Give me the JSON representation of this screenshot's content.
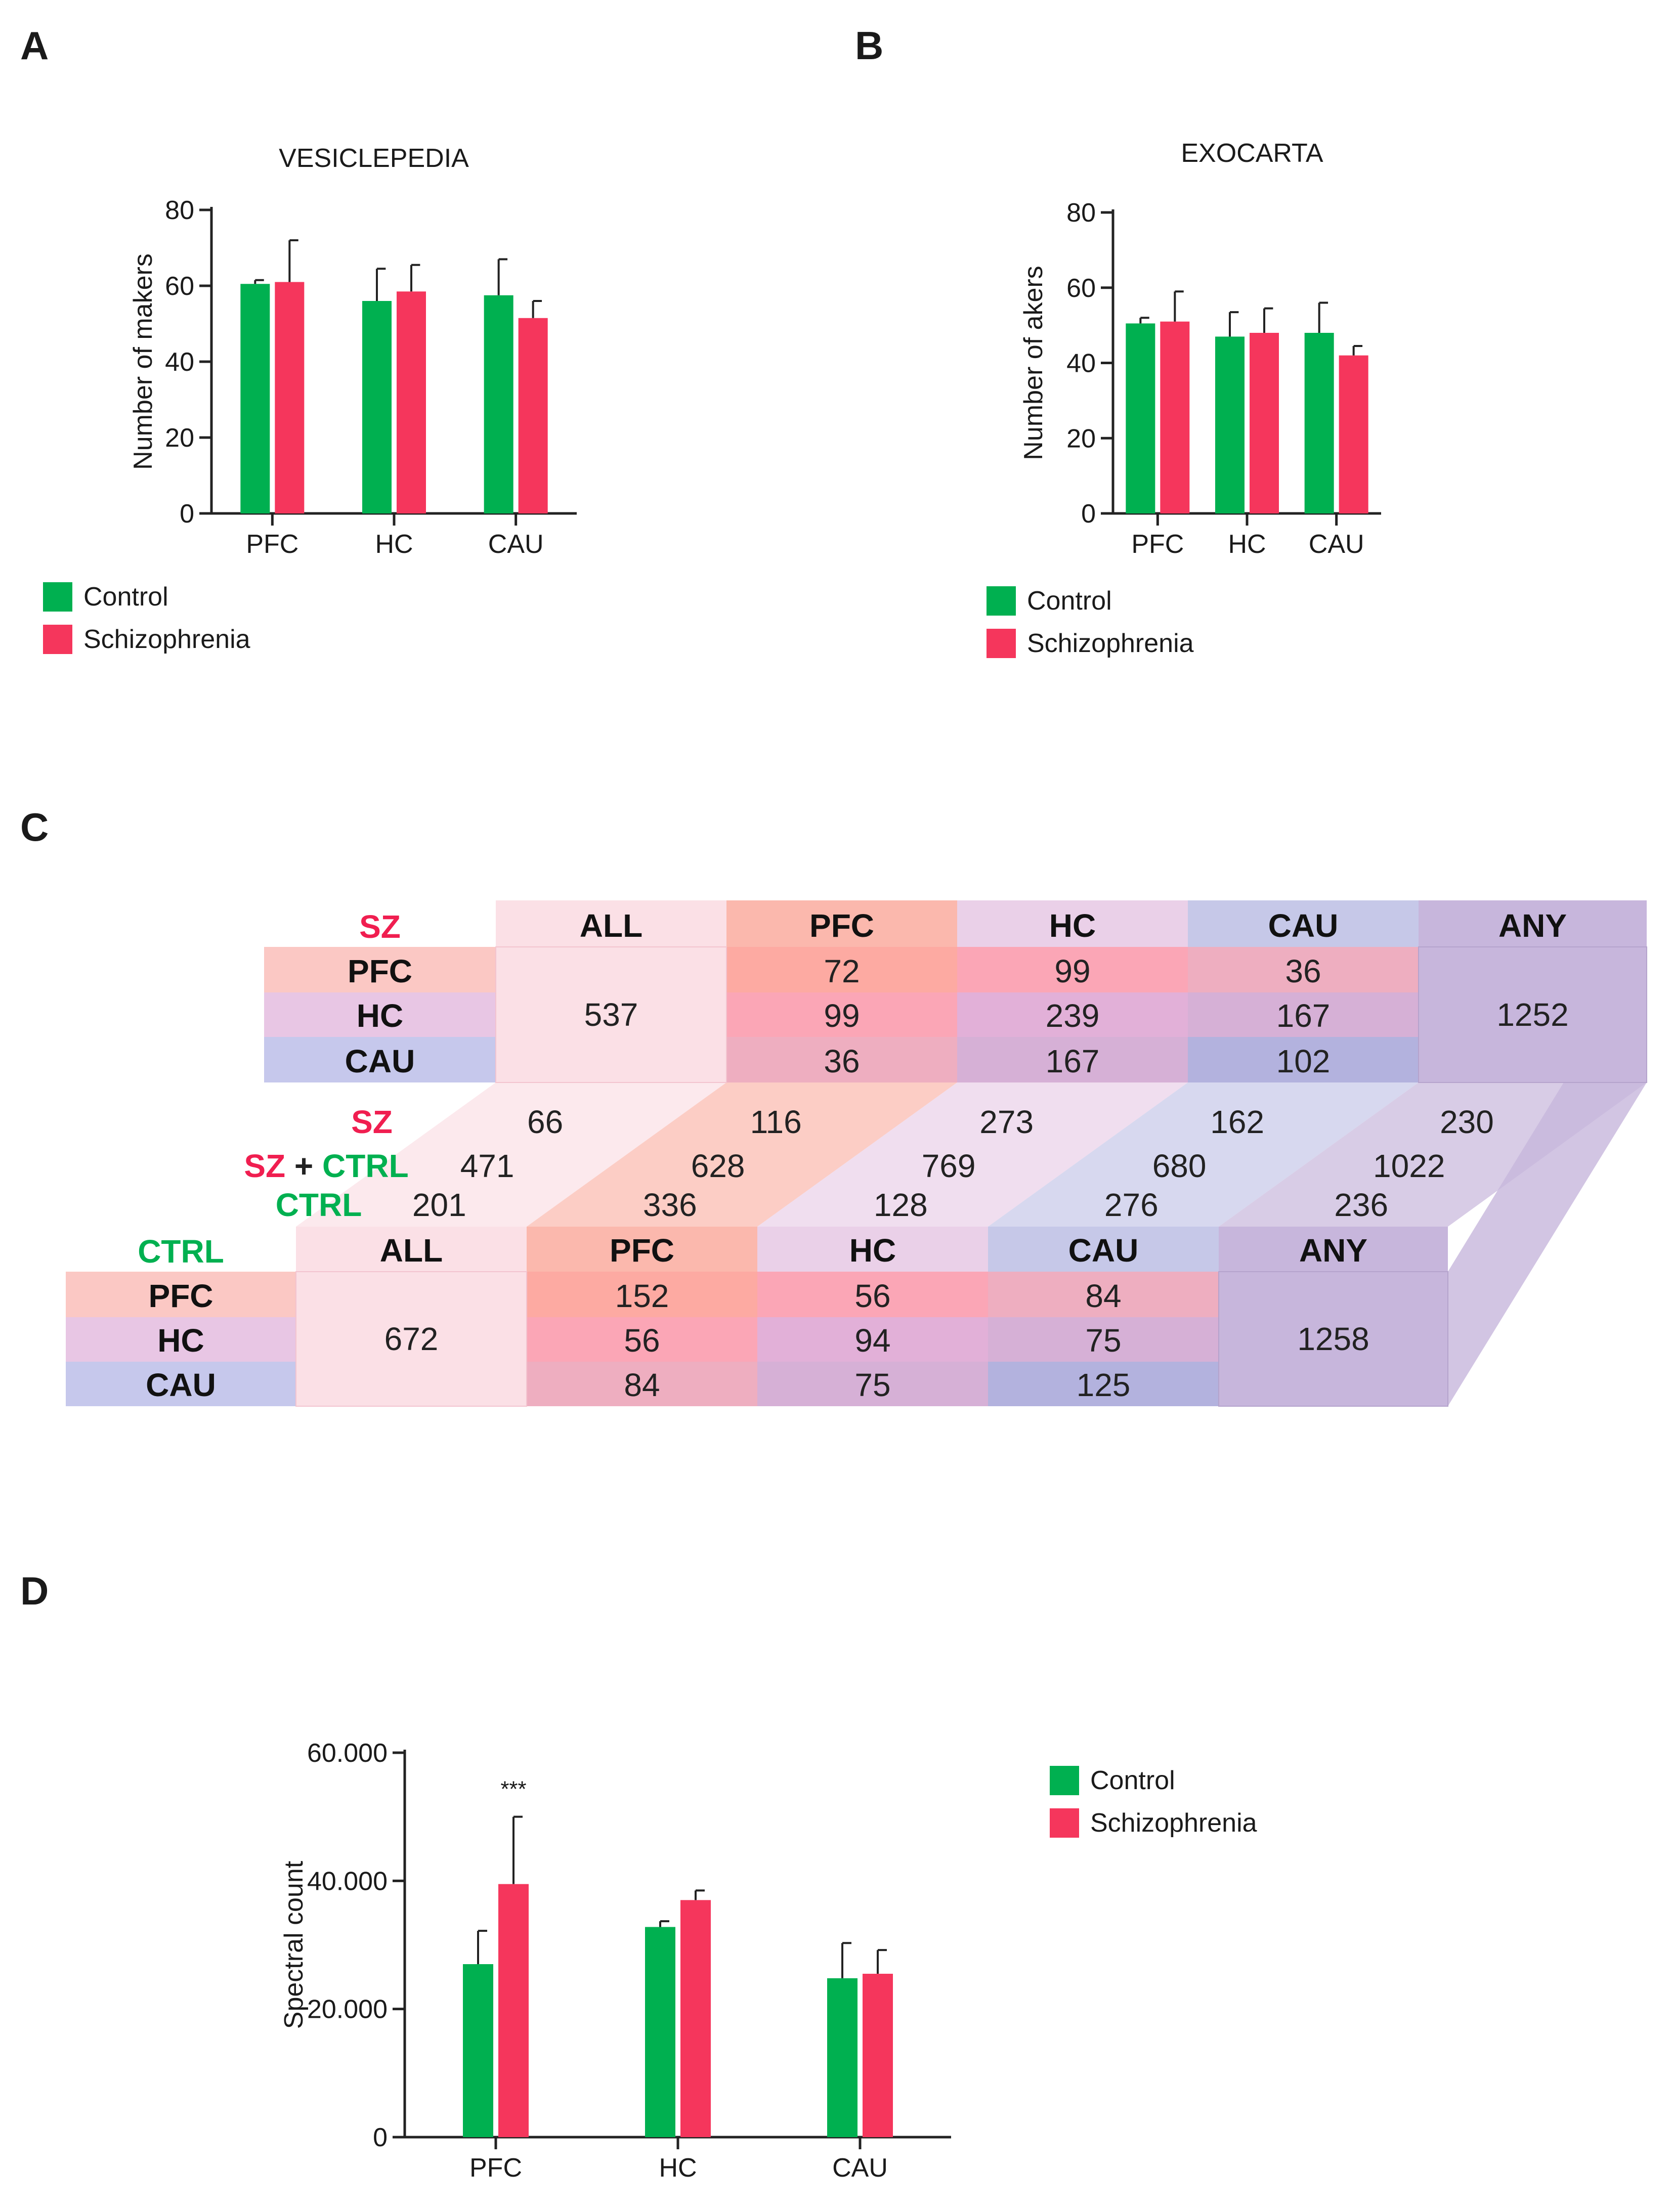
{
  "colors": {
    "control": "#00b050",
    "schizophrenia": "#f5365c",
    "axis": "#222222",
    "sz_label": "#f01e50",
    "ctrl_label": "#00b050"
  },
  "panels": {
    "a": "A",
    "b": "B",
    "c": "C",
    "d": "D"
  },
  "legend": {
    "control": "Control",
    "schizophrenia": "Schizophrenia"
  },
  "chart_data": [
    {
      "id": "A",
      "type": "bar",
      "title": "VESICLEPEDIA",
      "xlabel": "",
      "ylabel": "Number of makers",
      "categories": [
        "PFC",
        "HC",
        "CAU"
      ],
      "ylim": [
        0,
        80
      ],
      "yticks": [
        0,
        20,
        40,
        60,
        80
      ],
      "yticklabels": [
        "0",
        "20",
        "40",
        "60",
        "80"
      ],
      "legend_position": "bottom-left",
      "series": [
        {
          "name": "Control",
          "values": [
            60.5,
            56,
            57.5
          ],
          "errors": [
            1,
            8.5,
            9.5
          ]
        },
        {
          "name": "Schizophrenia",
          "values": [
            61,
            58.5,
            51.5
          ],
          "errors": [
            11,
            7,
            4.5
          ]
        }
      ]
    },
    {
      "id": "B",
      "type": "bar",
      "title": "EXOCARTA",
      "xlabel": "",
      "ylabel": "Number of akers",
      "categories": [
        "PFC",
        "HC",
        "CAU"
      ],
      "ylim": [
        0,
        80
      ],
      "yticks": [
        0,
        20,
        40,
        60,
        80
      ],
      "yticklabels": [
        "0",
        "20",
        "40",
        "60",
        "80"
      ],
      "legend_position": "bottom-left",
      "series": [
        {
          "name": "Control",
          "values": [
            50.5,
            47,
            48
          ],
          "errors": [
            1.5,
            6.5,
            8
          ]
        },
        {
          "name": "Schizophrenia",
          "values": [
            51,
            48,
            42
          ],
          "errors": [
            8,
            6.5,
            2.5
          ]
        }
      ]
    },
    {
      "id": "C",
      "type": "table",
      "sz": {
        "label": "SZ",
        "columns": [
          "ALL",
          "PFC",
          "HC",
          "CAU",
          "ANY"
        ],
        "rows": [
          "PFC",
          "HC",
          "CAU"
        ],
        "all": "537",
        "matrix": [
          [
            "72",
            "99",
            "36"
          ],
          [
            "99",
            "239",
            "167"
          ],
          [
            "36",
            "167",
            "102"
          ]
        ],
        "any": "1252"
      },
      "middle": {
        "sz_label": "SZ",
        "plus": "+",
        "ctrl_label": "CTRL",
        "sz_row": [
          "66",
          "116",
          "273",
          "162",
          "230"
        ],
        "both_row": [
          "471",
          "628",
          "769",
          "680",
          "1022"
        ],
        "ctrl_row": [
          "201",
          "336",
          "128",
          "276",
          "236"
        ]
      },
      "ctrl": {
        "label": "CTRL",
        "columns": [
          "ALL",
          "PFC",
          "HC",
          "CAU",
          "ANY"
        ],
        "rows": [
          "PFC",
          "HC",
          "CAU"
        ],
        "all": "672",
        "matrix": [
          [
            "152",
            "56",
            "84"
          ],
          [
            "56",
            "94",
            "75"
          ],
          [
            "84",
            "75",
            "125"
          ]
        ],
        "any": "1258"
      }
    },
    {
      "id": "D",
      "type": "bar",
      "title": "",
      "xlabel": "",
      "ylabel": "Spectral count",
      "categories": [
        "PFC",
        "HC",
        "CAU"
      ],
      "ylim": [
        0,
        60000
      ],
      "yticks": [
        0,
        20000,
        40000,
        60000
      ],
      "yticklabels": [
        "0",
        "20.000",
        "40.000",
        "60.000"
      ],
      "legend_position": "top-right",
      "annotation": {
        "category": "PFC",
        "text": "***"
      },
      "series": [
        {
          "name": "Control",
          "values": [
            27000,
            32800,
            24800
          ],
          "errors": [
            5200,
            900,
            5500
          ]
        },
        {
          "name": "Schizophrenia",
          "values": [
            39500,
            37000,
            25500
          ],
          "errors": [
            10500,
            1500,
            3700
          ]
        }
      ]
    }
  ]
}
